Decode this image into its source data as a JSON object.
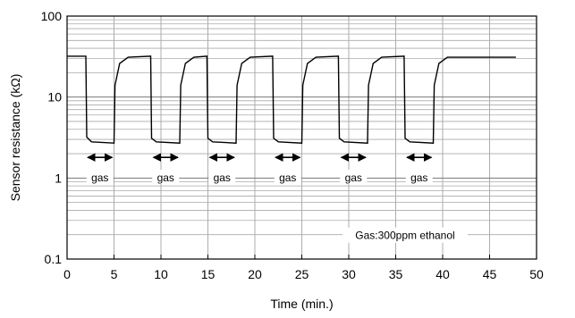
{
  "chart_data": {
    "type": "line",
    "title": "",
    "xlabel": "Time (min.)",
    "ylabel": "Sensor resistance (kΩ)",
    "xlim": [
      0,
      50
    ],
    "ylim": [
      0.1,
      100
    ],
    "y_scale": "log",
    "x_ticks": [
      "0",
      "5",
      "10",
      "15",
      "20",
      "25",
      "30",
      "35",
      "40",
      "45",
      "50"
    ],
    "y_ticks": [
      "0.1",
      "1",
      "10",
      "100"
    ],
    "grid": true,
    "gas_exposure_label": "gas",
    "gas_intervals": [
      [
        2.0,
        5.0
      ],
      [
        9.0,
        12.0
      ],
      [
        15.0,
        18.0
      ],
      [
        22.0,
        25.0
      ],
      [
        29.0,
        32.0
      ],
      [
        36.0,
        39.0
      ]
    ],
    "series": [
      {
        "values": [
          [
            0.0,
            32
          ],
          [
            2.0,
            32
          ],
          [
            2.1,
            3.2
          ],
          [
            2.6,
            2.8
          ],
          [
            5.0,
            2.7
          ],
          [
            5.1,
            14
          ],
          [
            5.6,
            26
          ],
          [
            6.5,
            31
          ],
          [
            8.9,
            32
          ],
          [
            9.0,
            3.1
          ],
          [
            9.5,
            2.8
          ],
          [
            12.0,
            2.7
          ],
          [
            12.1,
            14
          ],
          [
            12.6,
            26
          ],
          [
            13.5,
            31
          ],
          [
            14.9,
            32
          ],
          [
            15.0,
            3.1
          ],
          [
            15.5,
            2.8
          ],
          [
            18.0,
            2.7
          ],
          [
            18.1,
            14
          ],
          [
            18.6,
            26
          ],
          [
            19.5,
            31
          ],
          [
            21.9,
            32
          ],
          [
            22.0,
            3.1
          ],
          [
            22.5,
            2.8
          ],
          [
            25.0,
            2.7
          ],
          [
            25.1,
            14
          ],
          [
            25.6,
            26
          ],
          [
            26.5,
            31
          ],
          [
            28.9,
            32
          ],
          [
            29.0,
            3.1
          ],
          [
            29.5,
            2.8
          ],
          [
            32.0,
            2.7
          ],
          [
            32.1,
            14
          ],
          [
            32.6,
            26
          ],
          [
            33.5,
            31
          ],
          [
            35.9,
            32
          ],
          [
            36.0,
            3.1
          ],
          [
            36.5,
            2.8
          ],
          [
            39.0,
            2.7
          ],
          [
            39.1,
            14
          ],
          [
            39.6,
            26
          ],
          [
            40.5,
            31
          ],
          [
            47.8,
            31
          ]
        ]
      }
    ],
    "annotation": "Gas:300ppm ethanol"
  }
}
